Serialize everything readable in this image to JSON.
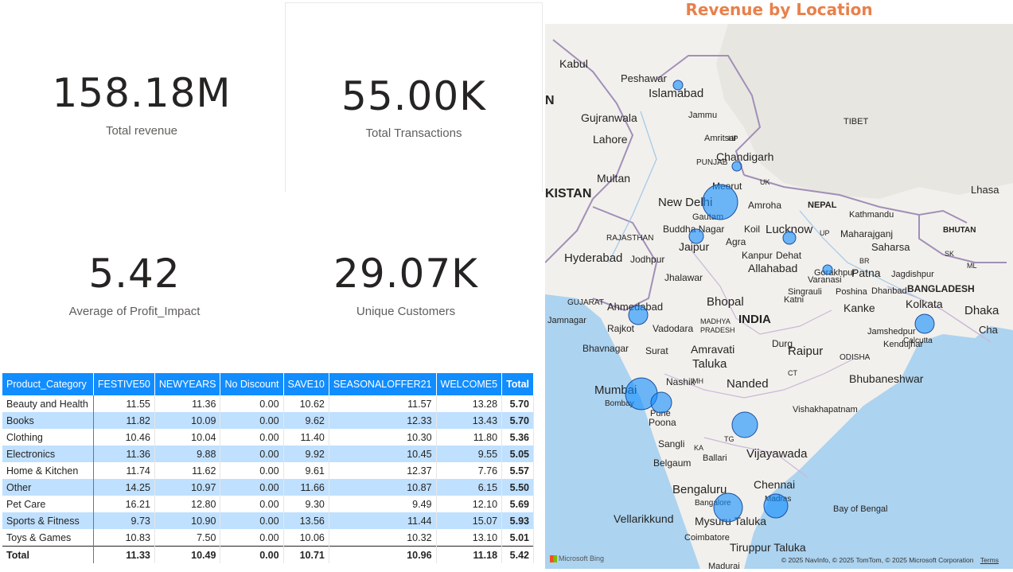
{
  "kpis": {
    "total_revenue": {
      "value": "158.18M",
      "label": "Total revenue"
    },
    "total_transactions": {
      "value": "55.00K",
      "label": "Total Transactions"
    },
    "avg_profit_impact": {
      "value": "5.42",
      "label": "Average of Profit_Impact"
    },
    "unique_customers": {
      "value": "29.07K",
      "label": "Unique Customers"
    }
  },
  "matrix": {
    "headers": [
      "Product_Category",
      "FESTIVE50",
      "NEWYEARS",
      "No Discount",
      "SAVE10",
      "SEASONALOFFER21",
      "WELCOME5",
      "Total"
    ],
    "rows": [
      [
        "Beauty and Health",
        "11.55",
        "11.36",
        "0.00",
        "10.62",
        "11.57",
        "13.28",
        "5.70"
      ],
      [
        "Books",
        "11.82",
        "10.09",
        "0.00",
        "9.62",
        "12.33",
        "13.43",
        "5.70"
      ],
      [
        "Clothing",
        "10.46",
        "10.04",
        "0.00",
        "11.40",
        "10.30",
        "11.80",
        "5.36"
      ],
      [
        "Electronics",
        "11.36",
        "9.88",
        "0.00",
        "9.92",
        "10.45",
        "9.55",
        "5.05"
      ],
      [
        "Home & Kitchen",
        "11.74",
        "11.62",
        "0.00",
        "9.61",
        "12.37",
        "7.76",
        "5.57"
      ],
      [
        "Other",
        "14.25",
        "10.97",
        "0.00",
        "11.66",
        "10.87",
        "6.15",
        "5.50"
      ],
      [
        "Pet Care",
        "16.21",
        "12.80",
        "0.00",
        "9.30",
        "9.49",
        "12.10",
        "5.69"
      ],
      [
        "Sports & Fitness",
        "9.73",
        "10.90",
        "0.00",
        "13.56",
        "11.44",
        "15.07",
        "5.93"
      ],
      [
        "Toys & Games",
        "10.83",
        "7.50",
        "0.00",
        "10.06",
        "10.32",
        "13.10",
        "5.01"
      ]
    ],
    "total": [
      "Total",
      "11.33",
      "10.49",
      "0.00",
      "10.71",
      "10.96",
      "11.18",
      "5.42"
    ]
  },
  "map": {
    "title": "Revenue by Location",
    "bubble_color": "#118dff",
    "labels": [
      "Kabul",
      "Peshawar",
      "Islamabad",
      "Jammu",
      "Gujranwala",
      "Lahore",
      "Amritsar",
      "HP",
      "PUNJAB",
      "Chandigarh",
      "UK",
      "Multan",
      "KISTAN",
      "New Delhi",
      "Meerut",
      "Gautam",
      "Amroha",
      "Buddha Nagar",
      "NEPAL",
      "Kathmandu",
      "Lhasa",
      "TIBET",
      "Koil",
      "Lucknow",
      "UP",
      "Maharajganj",
      "Saharsa",
      "BHUTAN",
      "RAJASTHAN",
      "Jaipur",
      "Agra",
      "Kanpur",
      "Dehat",
      "Gorakhpur",
      "BR",
      "SK",
      "ML",
      "Jodhpur",
      "Hyderabad",
      "Allahabad",
      "Varanasi",
      "Patna",
      "Jagdishpur",
      "Poshina",
      "Jhalawar",
      "Singrauli",
      "Dhanbad",
      "BANGLADESH",
      "GUJARAT",
      "Bhopal",
      "Katni",
      "Kanke",
      "Kolkata",
      "Dhaka",
      "Ahmedabad",
      "Calcutta",
      "Jamnagar",
      "Rajkot",
      "Vadodara",
      "MADHYA",
      "PRADESH",
      "INDIA",
      "Jamshedpur",
      "Kendujhar",
      "Cha",
      "Bhavnagar",
      "Surat",
      "Amravati",
      "Durg",
      "Raipur",
      "ODISHA",
      "Taluka",
      "Nashik",
      "MH",
      "CT",
      "Bhubaneshwar",
      "Mumbai",
      "Bombay",
      "Pune",
      "Nanded",
      "Vishakhapatnam",
      "Poona",
      "Sangli",
      "TG",
      "Belgaum",
      "KA",
      "Ballari",
      "Vijayawada",
      "Chennai",
      "Bengaluru",
      "Bangalore",
      "Madras",
      "Bay of Bengal",
      "Vellarikkund",
      "Mysuru Taluka",
      "Coimbatore",
      "Tiruppur Taluka",
      "Madurai",
      "N"
    ],
    "attribution": "© 2025 NavInfo, © 2025 TomTom, © 2025 Microsoft Corporation",
    "terms": "Terms",
    "bing_logo": "Microsoft Bing"
  }
}
